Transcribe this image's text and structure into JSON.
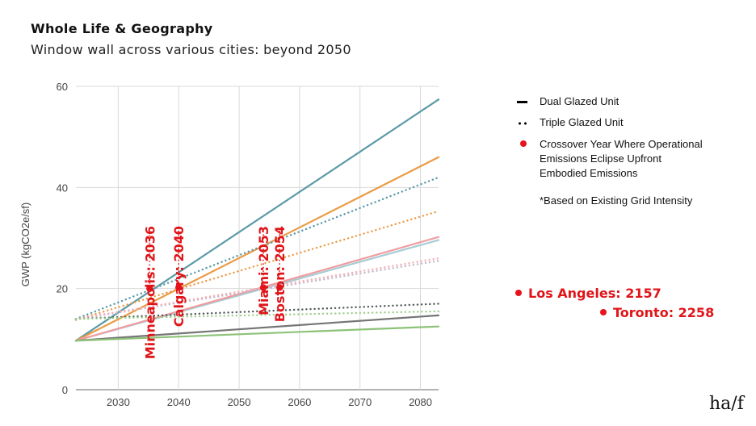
{
  "title": "Whole Life & Geography",
  "subtitle": "Window wall across various cities: beyond 2050",
  "legend": {
    "solid_label": "Dual Glazed Unit",
    "dotted_label": "Triple Glazed Unit",
    "dot_label_lines": [
      "Crossover Year Where Operational",
      "Emissions Eclipse Upfront",
      "Embodied Emissions"
    ],
    "note": "*Based on Existing Grid Intensity"
  },
  "outliers": [
    {
      "label": "Los Angeles: 2157"
    },
    {
      "label": "Toronto: 2258"
    }
  ],
  "logo": "ha/f",
  "colors": {
    "crossover": "#e8121b",
    "label": "#e01519",
    "grid": "#d9d9d9"
  },
  "chart_data": {
    "type": "line",
    "ylabel": "GWP (kgCO2e/sf)",
    "xlabel": "",
    "xlim": [
      2023,
      2083
    ],
    "ylim": [
      0,
      60
    ],
    "xticks": [
      2030,
      2040,
      2050,
      2060,
      2070,
      2080
    ],
    "yticks": [
      0,
      20,
      40,
      60
    ],
    "grid": true,
    "series": [
      {
        "name": "Minneapolis DGU",
        "style": "solid",
        "color": "#5b9aa7",
        "points": [
          [
            2023,
            9.7
          ],
          [
            2083,
            57.4
          ]
        ]
      },
      {
        "name": "Calgary DGU",
        "style": "solid",
        "color": "#eb9b45",
        "points": [
          [
            2023,
            9.7
          ],
          [
            2083,
            46
          ]
        ]
      },
      {
        "name": "Minneapolis TGU",
        "style": "dotted",
        "color": "#5b9aa7",
        "points": [
          [
            2023,
            14
          ],
          [
            2083,
            42
          ]
        ]
      },
      {
        "name": "Calgary TGU",
        "style": "dotted",
        "color": "#eb9b45",
        "points": [
          [
            2023,
            13.8
          ],
          [
            2083,
            35.3
          ]
        ]
      },
      {
        "name": "Boston DGU",
        "style": "solid",
        "color": "#a7cdd6",
        "points": [
          [
            2023,
            9.7
          ],
          [
            2083,
            29.6
          ]
        ]
      },
      {
        "name": "Miami DGU",
        "style": "solid",
        "color": "#ef9c9f",
        "points": [
          [
            2023,
            9.7
          ],
          [
            2083,
            30.2
          ]
        ]
      },
      {
        "name": "Boston TGU",
        "style": "dotted",
        "color": "#c7b7c9",
        "points": [
          [
            2023,
            13.9
          ],
          [
            2083,
            25.5
          ]
        ]
      },
      {
        "name": "Miami TGU",
        "style": "dotted",
        "color": "#f2b1b8",
        "points": [
          [
            2023,
            14
          ],
          [
            2083,
            26
          ]
        ]
      },
      {
        "name": "Toronto TGU",
        "style": "dotted",
        "color": "#4f5a56",
        "points": [
          [
            2023,
            14
          ],
          [
            2083,
            17
          ]
        ]
      },
      {
        "name": "Los Angeles TGU",
        "style": "dotted",
        "color": "#9dcf8b",
        "points": [
          [
            2023,
            14
          ],
          [
            2083,
            15.5
          ]
        ]
      },
      {
        "name": "Toronto DGU",
        "style": "solid",
        "color": "#757575",
        "points": [
          [
            2023,
            9.7
          ],
          [
            2083,
            14.7
          ]
        ]
      },
      {
        "name": "Los Angeles DGU",
        "style": "solid",
        "color": "#8cc277",
        "points": [
          [
            2023,
            9.7
          ],
          [
            2083,
            12.5
          ]
        ]
      }
    ],
    "crossovers": [
      {
        "label": "Minneapolis: 2036",
        "x": 2035.2,
        "y": 20
      },
      {
        "label": "Calgary: 2040",
        "x": 2040,
        "y": 20.2
      },
      {
        "label": "Miami: 2053",
        "x": 2054,
        "y": 20.2
      },
      {
        "label": "Boston: 2054",
        "x": 2056.7,
        "y": 20.2
      }
    ]
  }
}
